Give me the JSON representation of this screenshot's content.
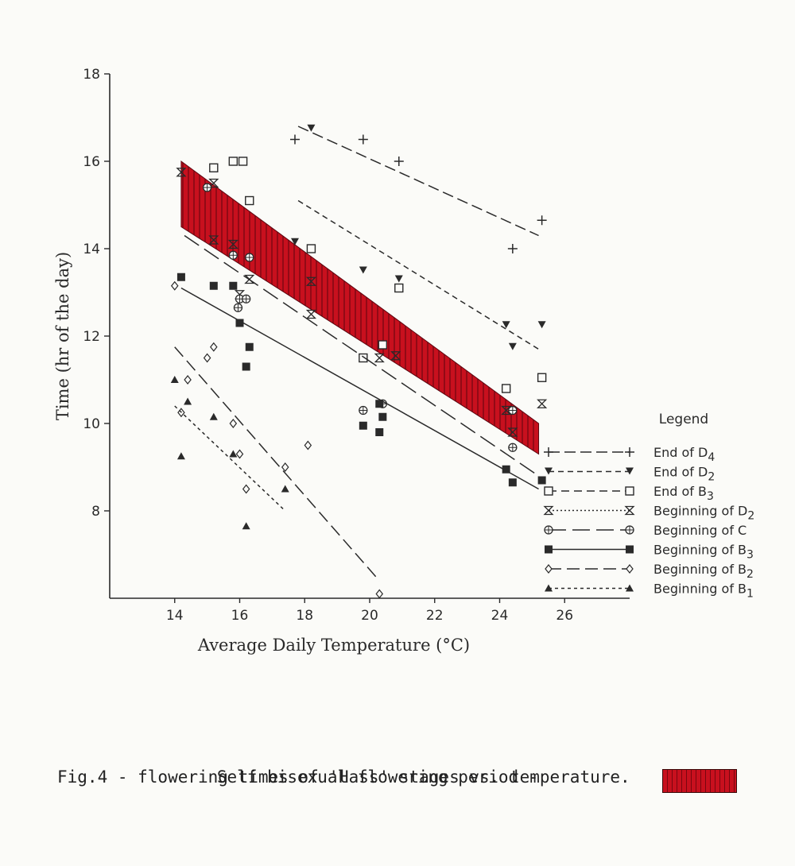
{
  "chart_data": {
    "type": "scatter",
    "xlabel": "Average Daily Temperature (°C)",
    "ylabel": "Time (hr of the day)",
    "xlim": [
      12,
      28
    ],
    "ylim": [
      6,
      18
    ],
    "x_ticks": [
      14,
      16,
      18,
      20,
      22,
      24,
      26
    ],
    "y_ticks": [
      8,
      10,
      12,
      14,
      16,
      18
    ],
    "grid": false,
    "legend_title": "Legend",
    "legend_position": "right",
    "shaded_band": {
      "name": "Self bisexual flowering period",
      "color": "#c8101e",
      "upper": [
        [
          14.2,
          16.0
        ],
        [
          25.2,
          10.0
        ]
      ],
      "lower": [
        [
          14.2,
          14.5
        ],
        [
          25.2,
          9.3
        ]
      ]
    },
    "series": [
      {
        "label": "End of D4",
        "marker": "plus",
        "dash": "14,6",
        "points": [
          [
            17.7,
            16.5
          ],
          [
            19.8,
            16.5
          ],
          [
            20.9,
            16.0
          ],
          [
            24.4,
            14.0
          ],
          [
            25.3,
            14.65
          ]
        ],
        "line": [
          [
            17.8,
            16.8
          ],
          [
            25.2,
            14.3
          ]
        ]
      },
      {
        "label": "End of D2",
        "marker": "tri-down",
        "dash": "7,5",
        "points": [
          [
            18.2,
            16.75
          ],
          [
            17.7,
            14.15
          ],
          [
            19.8,
            13.5
          ],
          [
            20.9,
            13.3
          ],
          [
            24.2,
            12.25
          ],
          [
            24.4,
            11.75
          ],
          [
            25.3,
            12.25
          ]
        ],
        "line": [
          [
            17.8,
            15.1
          ],
          [
            25.2,
            11.7
          ]
        ]
      },
      {
        "label": "End of B3",
        "marker": "square-open",
        "dash": "10,6",
        "points": [
          [
            15.2,
            15.85
          ],
          [
            15.8,
            16.0
          ],
          [
            16.1,
            16.0
          ],
          [
            16.3,
            15.1
          ],
          [
            18.2,
            14.0
          ],
          [
            19.8,
            11.5
          ],
          [
            20.9,
            13.1
          ],
          [
            20.4,
            11.8
          ],
          [
            24.2,
            10.8
          ],
          [
            25.3,
            11.05
          ]
        ],
        "line": []
      },
      {
        "label": "Beginning of D2",
        "marker": "hourglass",
        "dash": "2,3",
        "points": [
          [
            14.2,
            15.75
          ],
          [
            15.2,
            15.5
          ],
          [
            15.2,
            14.2
          ],
          [
            15.8,
            14.1
          ],
          [
            16.0,
            12.95
          ],
          [
            16.3,
            13.3
          ],
          [
            18.2,
            13.25
          ],
          [
            18.2,
            12.5
          ],
          [
            20.3,
            11.5
          ],
          [
            20.8,
            11.55
          ],
          [
            24.2,
            10.3
          ],
          [
            24.4,
            9.8
          ],
          [
            25.3,
            10.45
          ]
        ],
        "line": []
      },
      {
        "label": "Beginning of C",
        "marker": "circle-plus",
        "dash": "22,8",
        "points": [
          [
            15.0,
            15.4
          ],
          [
            15.8,
            13.85
          ],
          [
            16.3,
            13.8
          ],
          [
            16.0,
            12.85
          ],
          [
            15.95,
            12.65
          ],
          [
            16.2,
            12.85
          ],
          [
            19.8,
            10.3
          ],
          [
            20.4,
            10.45
          ],
          [
            24.4,
            9.45
          ],
          [
            24.4,
            10.3
          ]
        ],
        "line": [
          [
            14.3,
            14.3
          ],
          [
            25.2,
            8.8
          ]
        ]
      },
      {
        "label": "Beginning of B3",
        "marker": "square-filled",
        "dash": "",
        "points": [
          [
            14.2,
            13.35
          ],
          [
            15.2,
            13.15
          ],
          [
            15.8,
            13.15
          ],
          [
            16.0,
            12.3
          ],
          [
            16.3,
            11.75
          ],
          [
            16.2,
            11.3
          ],
          [
            19.8,
            9.95
          ],
          [
            20.3,
            9.8
          ],
          [
            20.4,
            10.15
          ],
          [
            20.3,
            10.45
          ],
          [
            24.2,
            8.95
          ],
          [
            24.4,
            8.65
          ],
          [
            25.3,
            8.7
          ]
        ],
        "line": [
          [
            14.2,
            13.1
          ],
          [
            25.2,
            8.5
          ]
        ]
      },
      {
        "label": "Beginning of B2",
        "marker": "diamond-open",
        "dash": "16,7",
        "points": [
          [
            14.0,
            13.15
          ],
          [
            14.2,
            10.25
          ],
          [
            14.4,
            11.0
          ],
          [
            15.0,
            11.5
          ],
          [
            15.2,
            11.75
          ],
          [
            15.8,
            10.0
          ],
          [
            16.0,
            9.3
          ],
          [
            16.2,
            8.5
          ],
          [
            17.4,
            9.0
          ],
          [
            18.1,
            9.5
          ],
          [
            20.3,
            6.1
          ]
        ],
        "line": [
          [
            14.0,
            11.75
          ],
          [
            20.3,
            6.4
          ]
        ]
      },
      {
        "label": "Beginning of B1",
        "marker": "tri-up",
        "dash": "4,4",
        "points": [
          [
            14.0,
            11.0
          ],
          [
            14.2,
            9.25
          ],
          [
            14.4,
            10.5
          ],
          [
            15.2,
            10.15
          ],
          [
            15.8,
            9.3
          ],
          [
            16.2,
            7.65
          ],
          [
            17.4,
            8.5
          ]
        ],
        "line": [
          [
            14.0,
            10.4
          ],
          [
            17.4,
            8.0
          ]
        ]
      }
    ]
  },
  "caption": {
    "line1": "Fig.4 - flowering times of 'Hass' stages vs. temperature.",
    "line2": "Self bisexual flowering period -"
  }
}
